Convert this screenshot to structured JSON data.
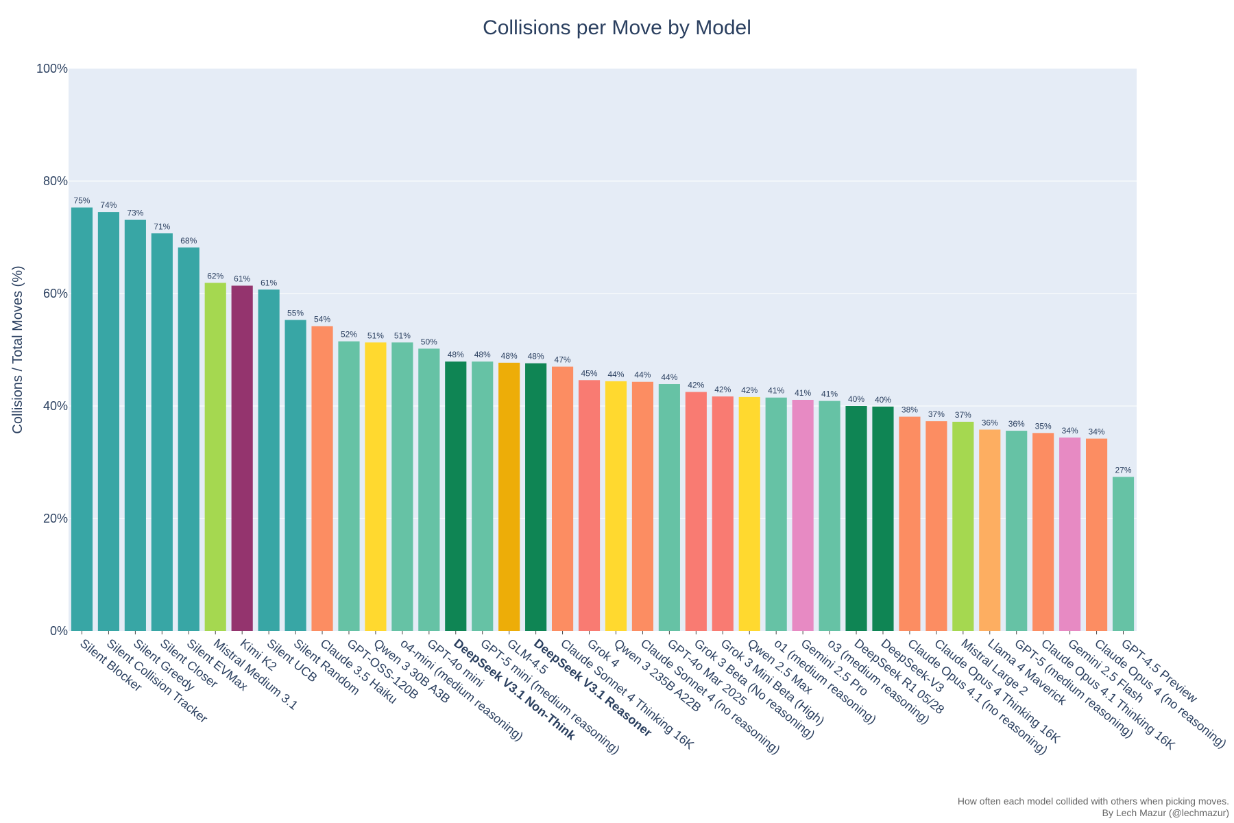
{
  "chart_data": {
    "type": "bar",
    "title": "Collisions per Move by Model",
    "xlabel": "",
    "ylabel": "Collisions / Total Moves (%)",
    "ylim": [
      0,
      100
    ],
    "yticks": [
      "0%",
      "20%",
      "40%",
      "60%",
      "80%",
      "100%"
    ],
    "grid": true,
    "legend": "none",
    "plot_background": "#e5ecf6",
    "bars": [
      {
        "label": "Silent Blocker",
        "value": 75.3,
        "text": "75%",
        "color": "#38a6a5",
        "bold": false
      },
      {
        "label": "Silent Collision Tracker",
        "value": 74.5,
        "text": "74%",
        "color": "#38a6a5",
        "bold": false
      },
      {
        "label": "Silent Greedy",
        "value": 73.1,
        "text": "73%",
        "color": "#38a6a5",
        "bold": false
      },
      {
        "label": "Silent Closer",
        "value": 70.7,
        "text": "71%",
        "color": "#38a6a5",
        "bold": false
      },
      {
        "label": "Silent EVMax",
        "value": 68.2,
        "text": "68%",
        "color": "#38a6a5",
        "bold": false
      },
      {
        "label": "Mistral Medium 3.1",
        "value": 61.9,
        "text": "62%",
        "color": "#a5d850",
        "bold": false
      },
      {
        "label": "Kimi K2",
        "value": 61.4,
        "text": "61%",
        "color": "#94346e",
        "bold": false
      },
      {
        "label": "Silent UCB",
        "value": 60.7,
        "text": "61%",
        "color": "#38a6a5",
        "bold": false
      },
      {
        "label": "Silent Random",
        "value": 55.3,
        "text": "55%",
        "color": "#38a6a5",
        "bold": false
      },
      {
        "label": "Claude 3.5 Haiku",
        "value": 54.2,
        "text": "54%",
        "color": "#fc8d62",
        "bold": false
      },
      {
        "label": "GPT-OSS-120B",
        "value": 51.5,
        "text": "52%",
        "color": "#66c2a5",
        "bold": false
      },
      {
        "label": "Qwen 3 30B A3B",
        "value": 51.3,
        "text": "51%",
        "color": "#ffd92f",
        "bold": false
      },
      {
        "label": "o4-mini (medium reasoning)",
        "value": 51.3,
        "text": "51%",
        "color": "#66c2a5",
        "bold": false
      },
      {
        "label": "GPT-4o mini",
        "value": 50.2,
        "text": "50%",
        "color": "#66c2a5",
        "bold": false
      },
      {
        "label": "DeepSeek V3.1 Non-Think",
        "value": 47.9,
        "text": "48%",
        "color": "#0f8554",
        "bold": true
      },
      {
        "label": "GPT-5 mini (medium reasoning)",
        "value": 47.9,
        "text": "48%",
        "color": "#66c2a5",
        "bold": false
      },
      {
        "label": "GLM-4.5",
        "value": 47.7,
        "text": "48%",
        "color": "#edad08",
        "bold": false
      },
      {
        "label": "DeepSeek V3.1 Reasoner",
        "value": 47.6,
        "text": "48%",
        "color": "#0f8554",
        "bold": true
      },
      {
        "label": "Claude Sonnet 4 Thinking 16K",
        "value": 47.0,
        "text": "47%",
        "color": "#fc8d62",
        "bold": false
      },
      {
        "label": "Grok 4",
        "value": 44.6,
        "text": "45%",
        "color": "#f97b72",
        "bold": false
      },
      {
        "label": "Qwen 3 235B A22B",
        "value": 44.4,
        "text": "44%",
        "color": "#ffd92f",
        "bold": false
      },
      {
        "label": "Claude Sonnet 4 (no reasoning)",
        "value": 44.3,
        "text": "44%",
        "color": "#fc8d62",
        "bold": false
      },
      {
        "label": "GPT-4o Mar 2025",
        "value": 43.9,
        "text": "44%",
        "color": "#66c2a5",
        "bold": false
      },
      {
        "label": "Grok 3 Beta (No reasoning)",
        "value": 42.5,
        "text": "42%",
        "color": "#f97b72",
        "bold": false
      },
      {
        "label": "Grok 3 Mini Beta (High)",
        "value": 41.7,
        "text": "42%",
        "color": "#f97b72",
        "bold": false
      },
      {
        "label": "Qwen 2.5 Max",
        "value": 41.6,
        "text": "42%",
        "color": "#ffd92f",
        "bold": false
      },
      {
        "label": "o1 (medium reasoning)",
        "value": 41.5,
        "text": "41%",
        "color": "#66c2a5",
        "bold": false
      },
      {
        "label": "Gemini 2.5 Pro",
        "value": 41.1,
        "text": "41%",
        "color": "#e78ac3",
        "bold": false
      },
      {
        "label": "o3 (medium reasoning)",
        "value": 40.9,
        "text": "41%",
        "color": "#66c2a5",
        "bold": false
      },
      {
        "label": "DeepSeek R1 05/28",
        "value": 40.0,
        "text": "40%",
        "color": "#0f8554",
        "bold": false
      },
      {
        "label": "DeepSeek-V3",
        "value": 39.9,
        "text": "40%",
        "color": "#0f8554",
        "bold": false
      },
      {
        "label": "Claude Opus 4.1 (no reasoning)",
        "value": 38.1,
        "text": "38%",
        "color": "#fc8d62",
        "bold": false
      },
      {
        "label": "Claude Opus 4 Thinking 16K",
        "value": 37.3,
        "text": "37%",
        "color": "#fc8d62",
        "bold": false
      },
      {
        "label": "Mistral Large 2",
        "value": 37.2,
        "text": "37%",
        "color": "#a5d850",
        "bold": false
      },
      {
        "label": "Llama 4 Maverick",
        "value": 35.8,
        "text": "36%",
        "color": "#fdae61",
        "bold": false
      },
      {
        "label": "GPT-5 (medium reasoning)",
        "value": 35.6,
        "text": "36%",
        "color": "#66c2a5",
        "bold": false
      },
      {
        "label": "Claude Opus 4.1 Thinking 16K",
        "value": 35.2,
        "text": "35%",
        "color": "#fc8d62",
        "bold": false
      },
      {
        "label": "Gemini 2.5 Flash",
        "value": 34.4,
        "text": "34%",
        "color": "#e78ac3",
        "bold": false
      },
      {
        "label": "Claude Opus 4 (no reasoning)",
        "value": 34.2,
        "text": "34%",
        "color": "#fc8d62",
        "bold": false
      },
      {
        "label": "GPT-4.5 Preview",
        "value": 27.4,
        "text": "27%",
        "color": "#66c2a5",
        "bold": false
      }
    ]
  },
  "annotation": {
    "line1": "How often each model collided with others when picking moves.",
    "line2": "By Lech Mazur (@lechmazur)"
  }
}
